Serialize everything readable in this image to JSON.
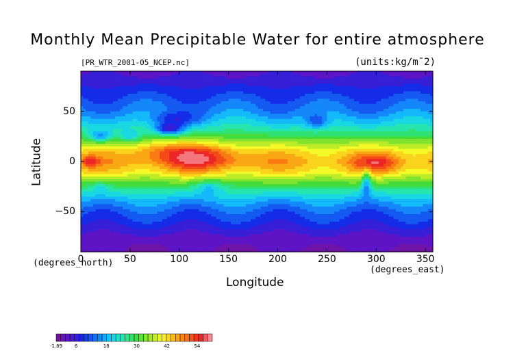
{
  "chart_data": {
    "type": "heatmap",
    "title": "Monthly Mean Precipitable Water for entire atmosphere",
    "subtitle": "[PR_WTR_2001-05_NCEP.nc]",
    "units": "(units:kg/m¯2)",
    "xlabel": "Longitude",
    "ylabel": "Latitude",
    "x_unit_label": "(degrees_east)",
    "y_unit_label": "(degrees_north)",
    "xlim": [
      0,
      357.5
    ],
    "ylim": [
      -90,
      90
    ],
    "x_ticks": [
      0,
      50,
      100,
      150,
      200,
      250,
      300,
      350
    ],
    "y_ticks": [
      50,
      0,
      -50
    ],
    "colorbar_min": -1.89,
    "colorbar_max": 60,
    "colorbar_labels": [
      "-1.89",
      "6",
      "18",
      "30",
      "42",
      "54"
    ],
    "colorbar_label_values": [
      -1.89,
      6,
      18,
      30,
      42,
      54
    ],
    "zonal_profile": {
      "lat": [
        90,
        80,
        70,
        60,
        50,
        40,
        30,
        20,
        10,
        0,
        -10,
        -20,
        -30,
        -40,
        -50,
        -60,
        -70,
        -80,
        -90
      ],
      "value": [
        3,
        6,
        9,
        12,
        15,
        20,
        26,
        34,
        42,
        46,
        42,
        33,
        24,
        17,
        12,
        9,
        5,
        2,
        1
      ]
    },
    "anomalies": [
      {
        "lon": 120,
        "lat": 5,
        "amp": 12,
        "rlon": 40,
        "rlat": 14
      },
      {
        "lon": 80,
        "lat": 12,
        "amp": 6,
        "rlon": 30,
        "rlat": 10
      },
      {
        "lon": 10,
        "lat": 0,
        "amp": 10,
        "rlon": 8,
        "rlat": 6
      },
      {
        "lon": 300,
        "lat": -2,
        "amp": 10,
        "rlon": 22,
        "rlat": 10
      },
      {
        "lon": 90,
        "lat": 32,
        "amp": -18,
        "rlon": 15,
        "rlat": 6
      },
      {
        "lon": 95,
        "lat": 42,
        "amp": -10,
        "rlon": 25,
        "rlat": 7
      },
      {
        "lon": 20,
        "lat": 25,
        "amp": -14,
        "rlon": 12,
        "rlat": 6
      },
      {
        "lon": 50,
        "lat": 25,
        "amp": -10,
        "rlon": 12,
        "rlat": 6
      },
      {
        "lon": 240,
        "lat": 40,
        "amp": -10,
        "rlon": 12,
        "rlat": 8
      },
      {
        "lon": 290,
        "lat": -20,
        "amp": -14,
        "rlon": 5,
        "rlat": 14
      },
      {
        "lon": 130,
        "lat": -25,
        "amp": -8,
        "rlon": 15,
        "rlat": 7
      },
      {
        "lon": 20,
        "lat": -25,
        "amp": -6,
        "rlon": 10,
        "rlat": 6
      }
    ]
  }
}
